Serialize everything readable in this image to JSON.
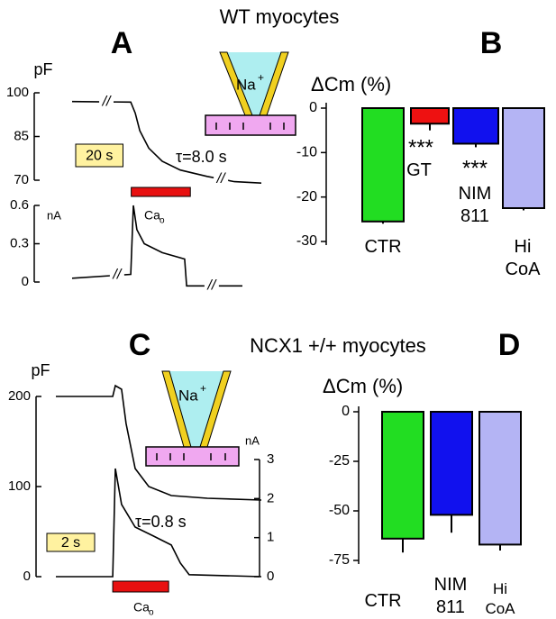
{
  "chart_data": [
    {
      "type": "trace",
      "panel": "A",
      "title": "WT myocytes",
      "ylabel": "pF",
      "y2label": "nA",
      "xlim": [
        0,
        80
      ],
      "ylim": [
        70,
        100
      ],
      "yticks": [
        70,
        85,
        100
      ],
      "y2lim": [
        0,
        0.6
      ],
      "y2ticks": [
        0,
        0.3,
        0.6
      ],
      "break_label": "//",
      "series": [
        {
          "color": "#000000",
          "x": [
            0,
            24.8,
            26.7,
            28.6,
            32.4,
            38.1,
            45.7,
            57.1,
            68.6,
            80
          ],
          "values": [
            97,
            96.8,
            93,
            87,
            81,
            76.5,
            73.5,
            71.3,
            69.5,
            69
          ],
          "breaks": [
            14.5,
            62.9
          ]
        },
        {
          "color": "#000000",
          "axis": "y2",
          "x": [
            0,
            24.8,
            25.9,
            27.4,
            30.5,
            38.1,
            47.6,
            48.4,
            57.1,
            72
          ],
          "values": [
            0.03,
            0.06,
            0.6,
            0.41,
            0.3,
            0.23,
            0.18,
            -0.03,
            -0.03,
            -0.03
          ],
          "breaks": [
            19,
            59
          ]
        }
      ],
      "annotation": "τ=8.0 s",
      "scale_bar": {
        "label": "20 s",
        "value": 20
      },
      "stimulus": {
        "label": "Ca",
        "subscript": "o",
        "x": [
          25,
          50
        ],
        "color": "#e81010"
      },
      "pipette": {
        "label": "Na",
        "superscript": "+"
      }
    },
    {
      "type": "bar",
      "panel": "B",
      "ylabel": "ΔCm (%)",
      "categories": [
        "CTR",
        "GT",
        "NIM 811",
        "Hi CoA"
      ],
      "values": [
        -25.5,
        -3.5,
        -8,
        -22.5
      ],
      "errors": [
        0.5,
        1.5,
        0.8,
        0.5
      ],
      "colors": [
        "#22dd22",
        "#ee1111",
        "#1111ee",
        "#b4b4f4"
      ],
      "significance": [
        null,
        "***",
        "***",
        null
      ],
      "ylim": [
        -30,
        0
      ],
      "yticks": [
        0,
        -10,
        -20,
        -30
      ]
    },
    {
      "type": "trace",
      "panel": "C",
      "title": "NCX1 +/+ myocytes",
      "ylabel": "pF",
      "y2label": "nA",
      "xlim": [
        0,
        8.6
      ],
      "ylim": [
        0,
        200
      ],
      "yticks": [
        0,
        100,
        200
      ],
      "y2lim": [
        0,
        3
      ],
      "y2ticks": [
        0,
        1,
        2,
        3
      ],
      "series": [
        {
          "color": "#000000",
          "x": [
            0,
            2.38,
            2.49,
            2.75,
            2.94,
            3.32,
            3.89,
            4.83,
            6.34,
            8.6
          ],
          "values": [
            200,
            200,
            212,
            208,
            170,
            120,
            100,
            90,
            87,
            85
          ]
        },
        {
          "color": "#000000",
          "axis": "y2",
          "x": [
            0,
            2.38,
            2.49,
            2.75,
            3.32,
            4.08,
            4.83,
            5.21,
            5.58,
            8.6
          ],
          "values": [
            0,
            0,
            2.77,
            1.85,
            1.27,
            1.04,
            0.81,
            0.35,
            0.05,
            0
          ]
        }
      ],
      "annotation": "τ=0.8 s",
      "scale_bar": {
        "label": "2 s",
        "value": 2
      },
      "stimulus": {
        "label": "Ca",
        "subscript": "o",
        "x": [
          2.38,
          4.72
        ],
        "color": "#e81010"
      },
      "pipette": {
        "label": "Na",
        "superscript": "+"
      }
    },
    {
      "type": "bar",
      "panel": "D",
      "ylabel": "ΔCm (%)",
      "categories": [
        "CTR",
        "NIM 811",
        "Hi CoA"
      ],
      "values": [
        -64,
        -52,
        -67
      ],
      "errors": [
        7,
        9,
        3
      ],
      "colors": [
        "#22dd22",
        "#1111ee",
        "#b4b4f4"
      ],
      "ylim": [
        -75,
        0
      ],
      "yticks": [
        0,
        -25,
        -50,
        -75
      ]
    }
  ]
}
